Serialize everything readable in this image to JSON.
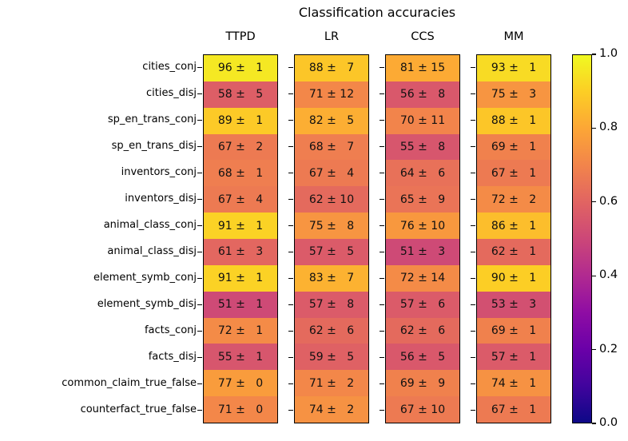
{
  "title": "Classification accuracies",
  "chart_data": {
    "type": "heatmap",
    "title": "Classification accuracies",
    "columns": [
      "TTPD",
      "LR",
      "CCS",
      "MM"
    ],
    "rows": [
      "cities_conj",
      "cities_disj",
      "sp_en_trans_conj",
      "sp_en_trans_disj",
      "inventors_conj",
      "inventors_disj",
      "animal_class_conj",
      "animal_class_disj",
      "element_symb_conj",
      "element_symb_disj",
      "facts_conj",
      "facts_disj",
      "common_claim_true_false",
      "counterfact_true_false"
    ],
    "values": [
      [
        96,
        88,
        81,
        93
      ],
      [
        58,
        71,
        56,
        75
      ],
      [
        89,
        82,
        70,
        88
      ],
      [
        67,
        68,
        55,
        69
      ],
      [
        68,
        67,
        64,
        67
      ],
      [
        67,
        62,
        65,
        72
      ],
      [
        91,
        75,
        76,
        86
      ],
      [
        61,
        57,
        51,
        62
      ],
      [
        91,
        83,
        72,
        90
      ],
      [
        51,
        57,
        57,
        53
      ],
      [
        72,
        62,
        62,
        69
      ],
      [
        55,
        59,
        56,
        57
      ],
      [
        77,
        71,
        69,
        74
      ],
      [
        71,
        74,
        67,
        67
      ]
    ],
    "errors": [
      [
        1,
        7,
        15,
        1
      ],
      [
        5,
        12,
        8,
        3
      ],
      [
        1,
        5,
        11,
        1
      ],
      [
        2,
        7,
        8,
        1
      ],
      [
        1,
        4,
        6,
        1
      ],
      [
        4,
        10,
        9,
        2
      ],
      [
        1,
        8,
        10,
        1
      ],
      [
        3,
        5,
        3,
        1
      ],
      [
        1,
        7,
        14,
        1
      ],
      [
        1,
        8,
        6,
        3
      ],
      [
        1,
        6,
        6,
        1
      ],
      [
        1,
        5,
        5,
        1
      ],
      [
        0,
        2,
        9,
        1
      ],
      [
        0,
        2,
        10,
        1
      ]
    ],
    "value_separator": "±",
    "colormap_name": "plasma",
    "colormap_stops": [
      "#0d0887",
      "#41049d",
      "#6a00a8",
      "#8f0da4",
      "#b12a90",
      "#cc4778",
      "#e16462",
      "#f2844b",
      "#fca636",
      "#fcce25",
      "#f0f921"
    ],
    "annotation_color": "#111111",
    "vmin": 0.0,
    "vmax": 1.0,
    "value_scale": 0.01,
    "colorbar_ticks": [
      "0.0",
      "0.2",
      "0.4",
      "0.6",
      "0.8",
      "1.0"
    ],
    "legend_position": "right"
  }
}
